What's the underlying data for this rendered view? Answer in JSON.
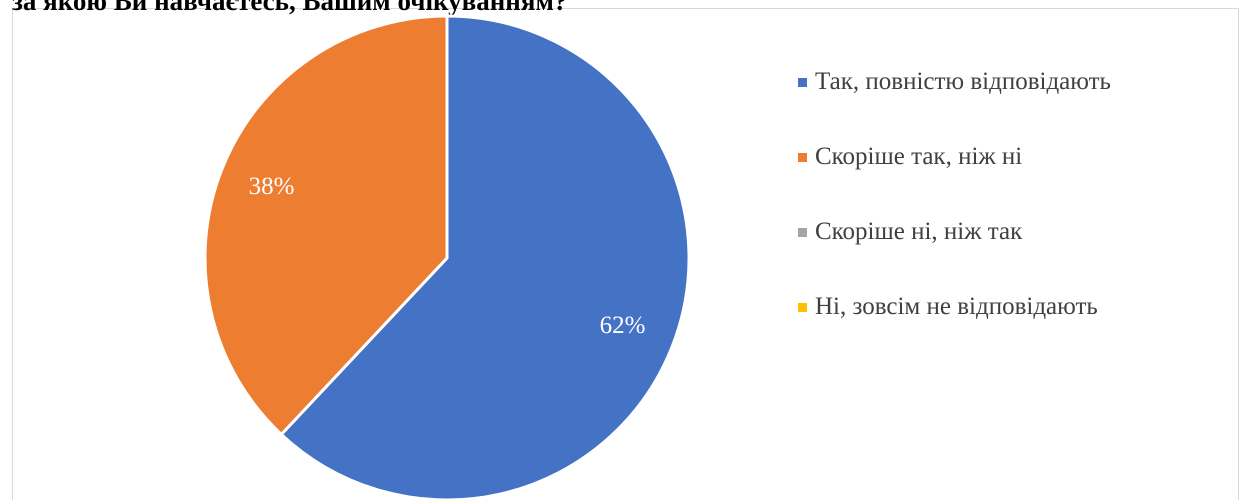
{
  "chart_data": {
    "type": "pie",
    "title": "за якою Ви навчаєтесь, Вашим очікуванням?",
    "categories": [
      "Так, повністю відповідають",
      "Скоріше так, ніж ні",
      "Скоріше ні, ніж так",
      "Ні, зовсім не відповідають"
    ],
    "values": [
      62,
      38,
      0,
      0
    ],
    "data_labels": [
      "62%",
      "38%",
      "",
      ""
    ],
    "colors": [
      "#4472c4",
      "#ed7d31",
      "#a5a5a5",
      "#ffc000"
    ],
    "legend_position": "right"
  }
}
